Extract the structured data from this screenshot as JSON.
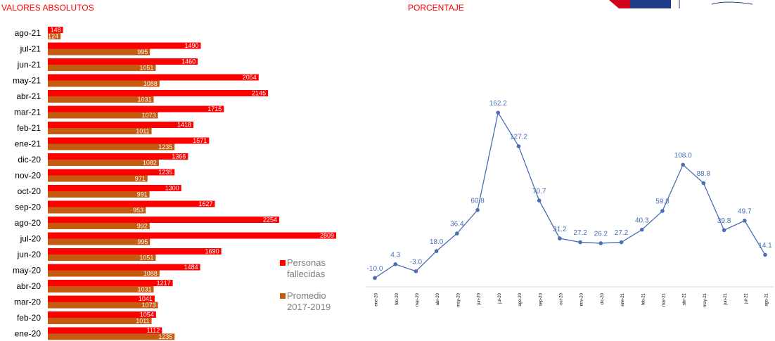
{
  "chart_data": [
    {
      "type": "hbar",
      "title": "VALORES ABSOLUTOS",
      "categories": [
        "ago-21",
        "jul-21",
        "jun-21",
        "may-21",
        "abr-21",
        "mar-21",
        "feb-21",
        "ene-21",
        "dic-20",
        "nov-20",
        "oct-20",
        "sep-20",
        "ago-20",
        "jul-20",
        "jun-20",
        "may-20",
        "abr-20",
        "mar-20",
        "feb-20",
        "ene-20"
      ],
      "series": [
        {
          "name": "Personas fallecidas",
          "color": "#ff0000",
          "values": [
            148,
            1490,
            1460,
            2054,
            2145,
            1715,
            1418,
            1571,
            1366,
            1235,
            1300,
            1627,
            2254,
            2809,
            1690,
            1484,
            1217,
            1041,
            1054,
            1112
          ]
        },
        {
          "name": "Promedio 2017-2019",
          "color": "#c55a11",
          "values": [
            124,
            995,
            1051,
            1088,
            1031,
            1073,
            1011,
            1235,
            1082,
            971,
            991,
            953,
            992,
            995,
            1051,
            1088,
            1031,
            1073,
            1011,
            1235
          ]
        }
      ],
      "xlim": [
        0,
        2809
      ]
    },
    {
      "type": "line",
      "title": "PORCENTAJE",
      "categories": [
        "ene-20",
        "feb-20",
        "mar-20",
        "abr-20",
        "may-20",
        "jun-20",
        "jul-20",
        "ago-20",
        "sep-20",
        "oct-20",
        "nov-20",
        "dic-20",
        "ene-21",
        "feb-21",
        "mar-21",
        "abr-21",
        "may-21",
        "jun-21",
        "jul-21",
        "ago-21"
      ],
      "values": [
        -10,
        4.3,
        -3,
        18,
        36.4,
        60.8,
        162.2,
        127.2,
        70.7,
        31.2,
        27.2,
        26.2,
        27.2,
        40.3,
        59.8,
        108,
        88.8,
        39.8,
        49.7,
        14.1
      ],
      "value_labels": [
        "-10.0",
        "4.3",
        "-3.0",
        "18.0",
        "36.4",
        "60.8",
        "162.2",
        "127.2",
        "70.7",
        "31.2",
        "27.2",
        "26.2",
        "27.2",
        "40.3",
        "59.8",
        "108.0",
        "88.8",
        "39.8",
        "49.7",
        "14.1"
      ],
      "color": "#4a6fb5",
      "ylim": [
        -20,
        180
      ]
    }
  ]
}
